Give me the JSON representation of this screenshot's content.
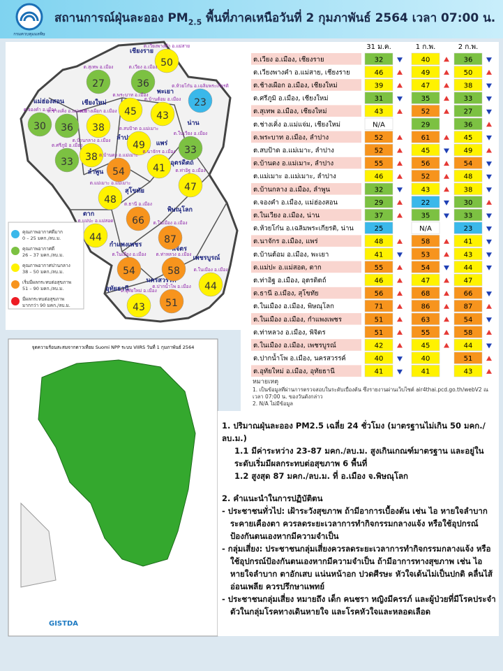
{
  "header": {
    "logo_text": "กรมควบคุมมลพิษ",
    "title_prefix": "สถานการณ์ฝุ่นละออง PM",
    "title_sub": "2.5",
    "title_rest": "พื้นที่ภาคเหนือวันที่ 2 กุมภาพันธ์ 2564 เวลา 07:00 น."
  },
  "legend": [
    {
      "label": "คุณภาพอากาศดีมาก",
      "range": "0 – 25 มคก./ลบ.ม.",
      "color": "#3ab8ea",
      "max": 25
    },
    {
      "label": "คุณภาพอากาศดี",
      "range": "26 – 37 มคก./ลบ.ม.",
      "color": "#7cc142",
      "max": 37
    },
    {
      "label": "คุณภาพอากาศปานกลาง",
      "range": "38 – 50 มคก./ลบ.ม.",
      "color": "#fff200",
      "max": 50
    },
    {
      "label": "เริ่มมีผลกระทบต่อสุขภาพ",
      "range": "51 – 90 มคก./ลบ.ม.",
      "color": "#f7941d",
      "max": 90
    },
    {
      "label": "มีผลกระทบต่อสุขภาพ",
      "range": "มากกว่า 90 มคก./ลบ.ม.",
      "color": "#ed1c24"
    }
  ],
  "map": {
    "provinces": [
      "เชียงราย",
      "แม่ฮ่องสอน",
      "เชียงใหม่",
      "พะเยา",
      "น่าน",
      "ลำปาง",
      "แพร่",
      "ลำพูน",
      "สุโขทัย",
      "อุตรดิตถ์",
      "ตาก",
      "พิษณุโลก",
      "กำแพงเพชร",
      "พิจิตร",
      "เพชรบูรณ์",
      "นครสวรรค์",
      "อุทัยธานี"
    ],
    "stations": [
      {
        "label": "ต.เวียงพางคำ อ.แม่สาย",
        "value": 50
      },
      {
        "label": "ต.สุเทพ อ.เมือง",
        "value": 27
      },
      {
        "label": "ต.เวียง อ.เมือง",
        "value": 36
      },
      {
        "label": "ต.ห้วยโก๋น อ.เฉลิมพระเกียรติ",
        "value": 23
      },
      {
        "label": "ต.พระบาท อ.เมือง",
        "value": 45
      },
      {
        "label": "ต.บ้านต้อม อ.เมือง",
        "value": 43
      },
      {
        "label": "ต.จองคำ อ.เมือง",
        "value": 30
      },
      {
        "label": "ต.ช่างเคิ่ง อ.แม่แจ่ม",
        "value": 36
      },
      {
        "label": "ต.ช้างเผือก อ.เมือง",
        "value": 38
      },
      {
        "label": "ต.สบป้าด อ.แม่เมาะ",
        "value": 49
      },
      {
        "label": "ต.ในเวียง อ.เมือง",
        "value": 33
      },
      {
        "label": "ต.ศรีภูมิ อ.เมือง",
        "value": 33
      },
      {
        "label": "ต.บ้านกลาง อ.เมือง",
        "value": 38
      },
      {
        "label": "ต.บ้านดง อ.แม่เมาะ",
        "value": 54
      },
      {
        "label": "ต.นาจักร อ.เมือง",
        "value": 41
      },
      {
        "label": "ต.ท่าอิฐ อ.เมือง",
        "value": 47
      },
      {
        "label": "ต.แม่เมาะ อ.แม่เมาะ",
        "value": 48
      },
      {
        "label": "ต.ธานี อ.เมือง",
        "value": 66
      },
      {
        "label": "ต.แม่ปะ อ.แม่สอด",
        "value": 44
      },
      {
        "label": "ต.ในเมือง อ.เมือง",
        "value": 87
      },
      {
        "label": "ต.ในเมือง อ.เมือง",
        "value": 54
      },
      {
        "label": "ต.ท่าหลวง อ.เมือง",
        "value": 58
      },
      {
        "label": "ต.ในเมือง อ.เมือง",
        "value": 44
      },
      {
        "label": "ต.อุทัยใหม่ อ.เมือง",
        "value": 43
      },
      {
        "label": "ต.ปากน้ำโพ อ.เมือง",
        "value": 51
      }
    ]
  },
  "table": {
    "columns": [
      "31 ม.ค.",
      "1 ก.พ.",
      "2 ก.พ."
    ],
    "rows": [
      {
        "station": "ต.เวียง อ.เมือง, เชียงราย",
        "values": [
          32,
          40,
          36
        ],
        "trend": [
          "down",
          "up",
          "down"
        ]
      },
      {
        "station": "ต.เวียงพางคำ อ.แม่สาย, เชียงราย",
        "values": [
          46,
          49,
          50
        ],
        "trend": [
          "up",
          "up",
          "up"
        ]
      },
      {
        "station": "ต.ช้างเผือก อ.เมือง, เชียงใหม่",
        "values": [
          39,
          47,
          38
        ],
        "trend": [
          "up",
          "up",
          "down"
        ]
      },
      {
        "station": "ต.ศรีภูมิ อ.เมือง, เชียงใหม่",
        "values": [
          31,
          35,
          33
        ],
        "trend": [
          "down",
          "up",
          "down"
        ]
      },
      {
        "station": "ต.สุเทพ อ.เมือง, เชียงใหม่",
        "values": [
          43,
          52,
          27
        ],
        "trend": [
          "up",
          "up",
          "down"
        ]
      },
      {
        "station": "ต.ช่างเคิ่ง อ.แม่แจ่ม, เชียงใหม่",
        "values": [
          "N/A",
          29,
          36
        ],
        "trend": [
          null,
          null,
          "up"
        ]
      },
      {
        "station": "ต.พระบาท อ.เมือง, ลำปาง",
        "values": [
          52,
          61,
          45
        ],
        "trend": [
          "up",
          "up",
          "down"
        ]
      },
      {
        "station": "ต.สบป้าด อ.แม่เมาะ, ลำปาง",
        "values": [
          52,
          45,
          49
        ],
        "trend": [
          "up",
          "down",
          "up"
        ]
      },
      {
        "station": "ต.บ้านดง อ.แม่เมาะ, ลำปาง",
        "values": [
          55,
          56,
          54
        ],
        "trend": [
          "up",
          "up",
          "down"
        ]
      },
      {
        "station": "ต.แม่เมาะ อ.แม่เมาะ, ลำปาง",
        "values": [
          46,
          52,
          48
        ],
        "trend": [
          "up",
          "up",
          "down"
        ]
      },
      {
        "station": "ต.บ้านกลาง อ.เมือง, ลำพูน",
        "values": [
          32,
          43,
          38
        ],
        "trend": [
          "down",
          "up",
          "down"
        ]
      },
      {
        "station": "ต.จองคำ อ.เมือง, แม่ฮ่องสอน",
        "values": [
          29,
          22,
          30
        ],
        "trend": [
          "up",
          "down",
          "up"
        ]
      },
      {
        "station": "ต.ในเวียง อ.เมือง, น่าน",
        "values": [
          37,
          35,
          33
        ],
        "trend": [
          "up",
          "down",
          "down"
        ]
      },
      {
        "station": "ต.ห้วยโก๋น อ.เฉลิมพระเกียรติ, น่าน",
        "values": [
          25,
          "N/A",
          23
        ],
        "trend": [
          null,
          null,
          "down"
        ]
      },
      {
        "station": "ต.นาจักร อ.เมือง, แพร่",
        "values": [
          48,
          58,
          41
        ],
        "trend": [
          "up",
          "up",
          "down"
        ]
      },
      {
        "station": "ต.บ้านต้อม อ.เมือง, พะเยา",
        "values": [
          41,
          53,
          43
        ],
        "trend": [
          "down",
          "up",
          "down"
        ]
      },
      {
        "station": "ต.แม่ปะ อ.แม่สอด, ตาก",
        "values": [
          55,
          54,
          44
        ],
        "trend": [
          "up",
          "down",
          "down"
        ]
      },
      {
        "station": "ต.ท่าอิฐ อ.เมือง, อุตรดิตถ์",
        "values": [
          46,
          47,
          47
        ],
        "trend": [
          "up",
          "up",
          null
        ]
      },
      {
        "station": "ต.ธานี อ.เมือง, สุโขทัย",
        "values": [
          56,
          68,
          66
        ],
        "trend": [
          "up",
          "up",
          "down"
        ]
      },
      {
        "station": "ต.ในเมือง อ.เมือง, พิษณุโลก",
        "values": [
          71,
          86,
          87
        ],
        "trend": [
          "up",
          "up",
          "up"
        ]
      },
      {
        "station": "ต.ในเมือง อ.เมือง, กำแพงเพชร",
        "values": [
          51,
          63,
          54
        ],
        "trend": [
          "up",
          "up",
          "down"
        ]
      },
      {
        "station": "ต.ท่าหลวง อ.เมือง, พิจิตร",
        "values": [
          51,
          55,
          58
        ],
        "trend": [
          "up",
          "up",
          "up"
        ]
      },
      {
        "station": "ต.ในเมือง อ.เมือง, เพชรบูรณ์",
        "values": [
          42,
          45,
          44
        ],
        "trend": [
          "up",
          "up",
          "down"
        ]
      },
      {
        "station": "ต.ปากน้ำโพ อ.เมือง, นครสวรรค์",
        "values": [
          40,
          40,
          51
        ],
        "trend": [
          "down",
          null,
          "up"
        ]
      },
      {
        "station": "ต.อุทัยใหม่ อ.เมือง, อุทัยธานี",
        "values": [
          41,
          41,
          43
        ],
        "trend": [
          "down",
          null,
          "up"
        ]
      }
    ]
  },
  "notes": {
    "title": "หมายเหตุ",
    "items": [
      "1. เป็นข้อมูลที่ผ่านการตรวจสอบในระดับเบื้องต้น ซึ่งรายงานผ่านเว็บไซต์ air4thai.pcd.go.th/webV2 ณ เวลา 07:00 น. ของวันดังกล่าว",
      "2. N/A ไม่มีข้อมูล"
    ]
  },
  "satellite": {
    "title": "จุดความร้อนสะสมจากดาวเทียม Suomi NPP ระบบ VIIRS วันที่ 1 กุมภาพันธ์ 2564",
    "logo": "GISTDA"
  },
  "summary": {
    "s1_title": "1. ปริมาณฝุ่นละออง PM2.5 เฉลี่ย 24 ชั่วโมง (มาตรฐานไม่เกิน 50 มคก./ลบ.ม.)",
    "s1_1": "1.1 มีค่าระหว่าง 23-87 มคก./ลบ.ม. สูงเกินเกณฑ์มาตรฐาน และอยู่ในระดับเริ่มมีผลกระทบต่อสุขภาพ 6 พื้นที่",
    "s1_2": "1.2 สูงสุด 87 มคก./ลบ.ม. ที่ อ.เมือง จ.พิษณุโลก",
    "s2_title": "2. คำแนะนำในการปฏิบัติตน",
    "items": [
      "- ประชาชนทั่วไป: เฝ้าระวังสุขภาพ ถ้ามีอาการเบื้องต้น เช่น ไอ หายใจลำบาก ระคายเคืองตา ควรลดระยะเวลาการทำกิจกรรมกลางแจ้ง หรือใช้อุปกรณ์ป้องกันตนเองหากมีความจำเป็น",
      "- กลุ่มเสี่ยง: ประชาชนกลุ่มเสี่ยงควรลดระยะเวลาการทำกิจกรรมกลางแจ้ง หรือใช้อุปกรณ์ป้องกันตนเองหากมีความจำเป็น ถ้ามีอาการทางสุขภาพ เช่น ไอ หายใจลำบาก ตาอักเสบ แน่นหน้าอก ปวดศีรษะ หัวใจเต้นไม่เป็นปกติ คลื่นไส้ อ่อนเพลีย ควรปรึกษาแพทย์",
      "- ประชาชนกลุ่มเสี่ยง หมายถึง เด็ก คนชรา หญิงมีครรภ์ และผู้ป่วยที่มีโรคประจำตัวในกลุ่มโรคทางเดินหายใจ และโรคหัวใจและหลอดเลือด"
    ]
  }
}
